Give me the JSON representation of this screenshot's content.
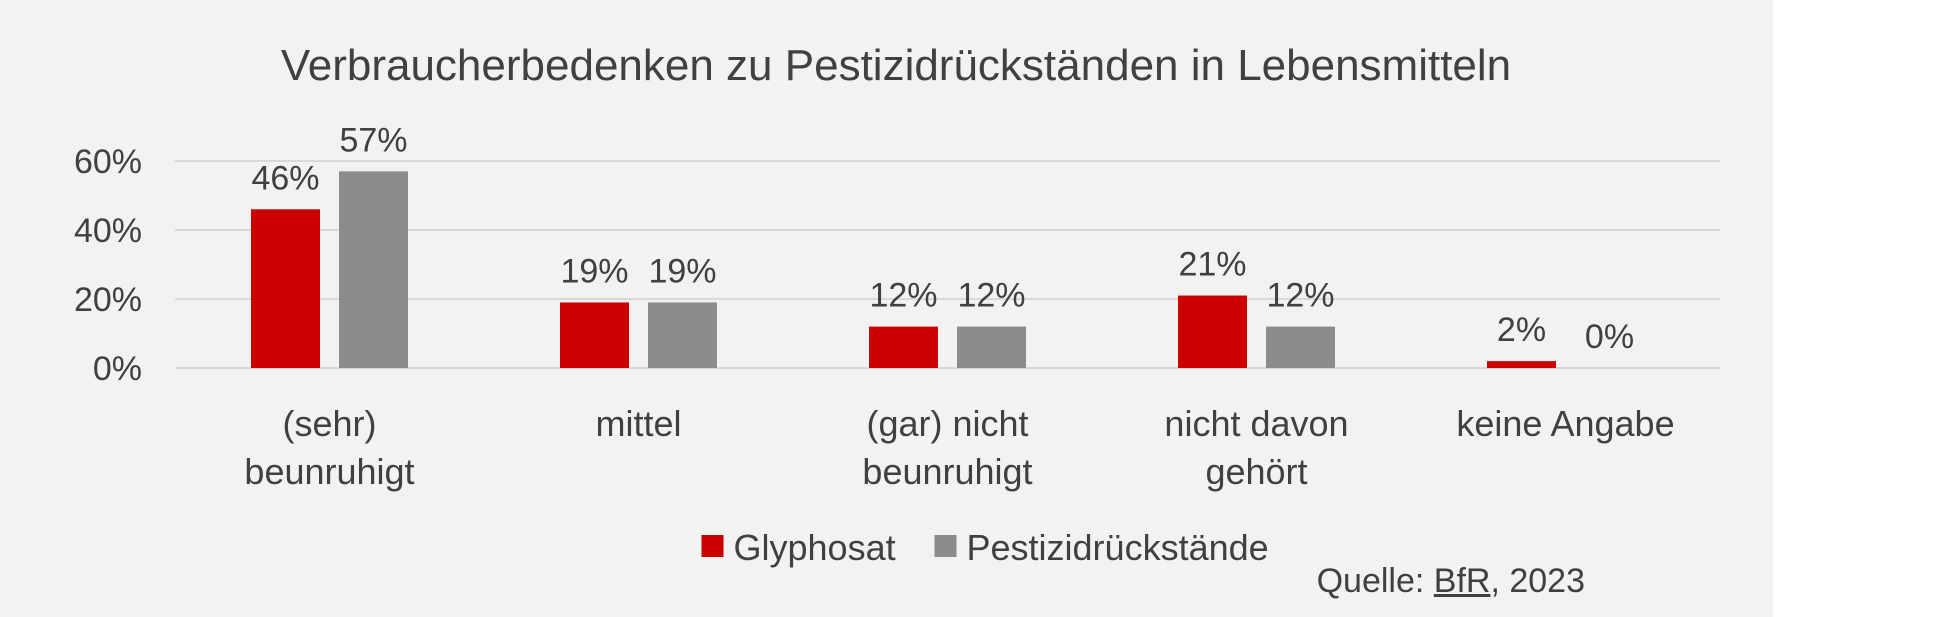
{
  "chart_data": {
    "type": "bar",
    "title": "Verbraucherbedenken zu Pestizidrückständen in Lebensmitteln",
    "categories": [
      [
        "(sehr)",
        "beunruhigt"
      ],
      [
        "mittel"
      ],
      [
        "(gar) nicht",
        "beunruhigt"
      ],
      [
        "nicht davon",
        "gehört"
      ],
      [
        "keine Angabe"
      ]
    ],
    "series": [
      {
        "name": "Glyphosat",
        "values": [
          46,
          19,
          12,
          21,
          2
        ],
        "labels": [
          "46%",
          "19%",
          "12%",
          "21%",
          "2%"
        ],
        "color": "#cc0000"
      },
      {
        "name": "Pestizidrückstände",
        "values": [
          57,
          19,
          12,
          12,
          0
        ],
        "labels": [
          "57%",
          "19%",
          "12%",
          "12%",
          "0%"
        ],
        "color": "#8c8c8c"
      }
    ],
    "yticks": [
      "0%",
      "20%",
      "40%",
      "60%"
    ],
    "ylim": [
      0,
      60
    ],
    "grid": true,
    "legend_position": "bottom"
  },
  "source": {
    "prefix": "Quelle: ",
    "link": "BfR",
    "suffix": ", 2023"
  }
}
